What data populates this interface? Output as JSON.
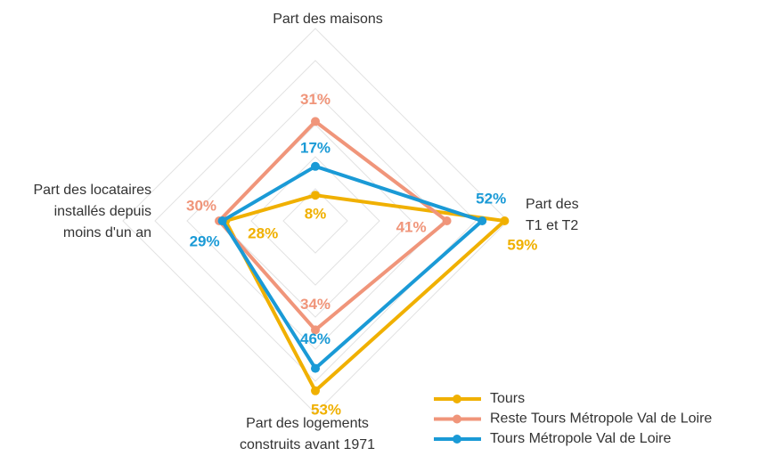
{
  "chart_data": {
    "type": "radar",
    "axes": [
      [
        "Part des maisons"
      ],
      [
        "Part des",
        "T1 et T2"
      ],
      [
        "Part des logements",
        "construits avant 1971"
      ],
      [
        "Part des locataires",
        "installés depuis",
        "moins d'un an"
      ]
    ],
    "series": [
      {
        "name": "Tours",
        "color": "#f0b000",
        "values": [
          8,
          59,
          53,
          28
        ],
        "value_labels": [
          "8%",
          "59%",
          "53%",
          "28%"
        ]
      },
      {
        "name": "Reste Tours Métropole Val de Loire",
        "color": "#f0957a",
        "values": [
          31,
          41,
          34,
          30
        ],
        "value_labels": [
          "31%",
          "41%",
          "34%",
          "30%"
        ]
      },
      {
        "name": "Tours Métropole Val de Loire",
        "color": "#1a9ad6",
        "values": [
          17,
          52,
          46,
          29
        ],
        "value_labels": [
          "17%",
          "52%",
          "46%",
          "29%"
        ]
      }
    ],
    "rlim": [
      0,
      60
    ],
    "rticks": [
      10,
      20,
      30,
      40,
      50,
      60
    ],
    "grid": true,
    "legend": "lower right"
  }
}
